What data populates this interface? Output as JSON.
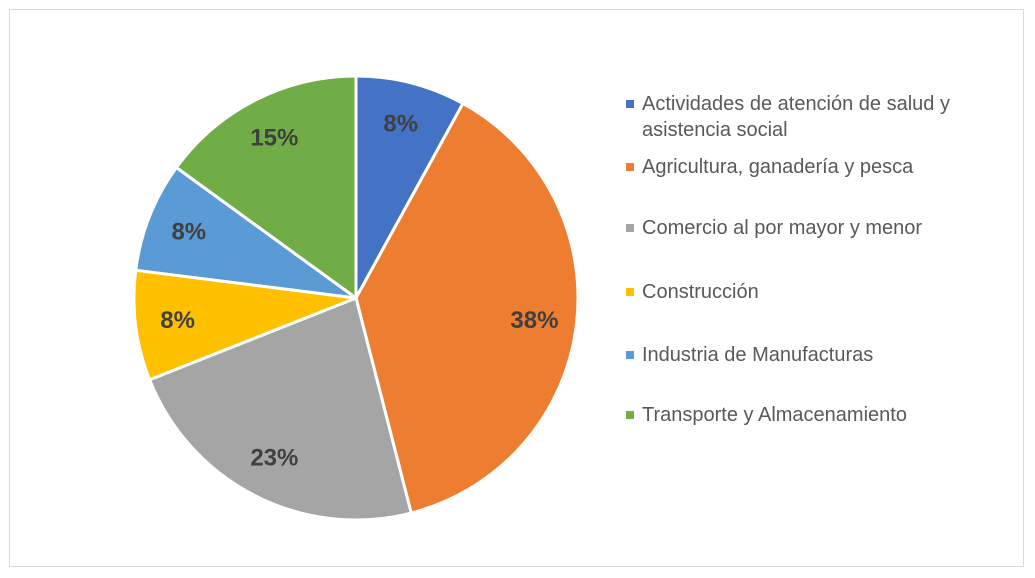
{
  "chart_data": {
    "type": "pie",
    "categories": [
      "Actividades de atención de salud y asistencia social",
      "Agricultura, ganadería y pesca",
      "Comercio al por mayor y menor",
      "Construcción",
      "Industria de Manufacturas",
      "Transporte y Almacenamiento"
    ],
    "values": [
      8,
      38,
      23,
      8,
      8,
      15
    ],
    "value_labels": [
      "8%",
      "38%",
      "23%",
      "8%",
      "8%",
      "15%"
    ],
    "colors": [
      "#4472c4",
      "#ed7d31",
      "#a5a5a5",
      "#ffc000",
      "#5b9bd5",
      "#70ad47"
    ],
    "legend": "right"
  }
}
